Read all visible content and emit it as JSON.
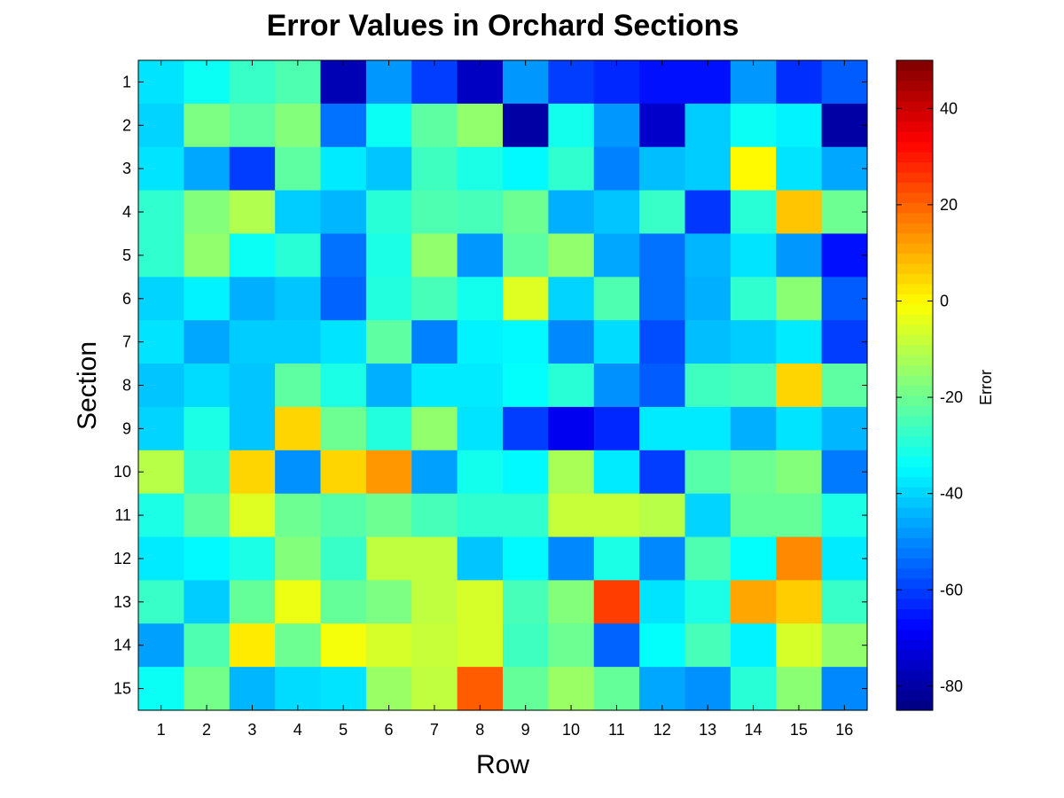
{
  "chart_data": {
    "type": "heatmap",
    "title": "Error Values in Orchard Sections",
    "xlabel": "Row",
    "ylabel": "Section",
    "colorbar_label": "Error",
    "colormap": "jet",
    "clim": [
      -85,
      50
    ],
    "colorbar_ticks": [
      40,
      20,
      0,
      -20,
      -40,
      -60,
      -80
    ],
    "x": [
      1,
      2,
      3,
      4,
      5,
      6,
      7,
      8,
      9,
      10,
      11,
      12,
      13,
      14,
      15,
      16
    ],
    "y": [
      1,
      2,
      3,
      4,
      5,
      6,
      7,
      8,
      9,
      10,
      11,
      12,
      13,
      14,
      15
    ],
    "z": [
      [
        -38,
        -33,
        -27,
        -24,
        -78,
        -48,
        -60,
        -76,
        -48,
        -60,
        -63,
        -66,
        -66,
        -48,
        -62,
        -56
      ],
      [
        -40,
        -18,
        -22,
        -17,
        -53,
        -33,
        -22,
        -15,
        -80,
        -32,
        -48,
        -75,
        -41,
        -33,
        -36,
        -80
      ],
      [
        -38,
        -46,
        -60,
        -22,
        -37,
        -42,
        -26,
        -31,
        -35,
        -28,
        -51,
        -43,
        -41,
        0,
        -38,
        -46
      ],
      [
        -28,
        -17,
        -11,
        -41,
        -44,
        -29,
        -24,
        -25,
        -20,
        -45,
        -42,
        -27,
        -61,
        -29,
        7,
        -20
      ],
      [
        -28,
        -15,
        -33,
        -29,
        -53,
        -31,
        -15,
        -48,
        -22,
        -15,
        -46,
        -53,
        -44,
        -38,
        -48,
        -66
      ],
      [
        -40,
        -36,
        -45,
        -42,
        -55,
        -30,
        -25,
        -32,
        -5,
        -40,
        -24,
        -53,
        -45,
        -28,
        -16,
        -56
      ],
      [
        -38,
        -46,
        -41,
        -41,
        -38,
        -22,
        -51,
        -36,
        -35,
        -50,
        -39,
        -58,
        -43,
        -41,
        -37,
        -60
      ],
      [
        -42,
        -39,
        -42,
        -22,
        -31,
        -45,
        -37,
        -37,
        -34,
        -29,
        -49,
        -56,
        -26,
        -25,
        5,
        -22
      ],
      [
        -40,
        -31,
        -42,
        5,
        -20,
        -30,
        -15,
        -38,
        -60,
        -70,
        -63,
        -37,
        -37,
        -45,
        -38,
        -44
      ],
      [
        -10,
        -28,
        5,
        -49,
        5,
        13,
        -47,
        -32,
        -35,
        -12,
        -37,
        -60,
        -23,
        -20,
        -17,
        -52
      ],
      [
        -31,
        -22,
        -5,
        -20,
        -23,
        -20,
        -25,
        -28,
        -28,
        -8,
        -8,
        -10,
        -40,
        -21,
        -21,
        -31
      ],
      [
        -37,
        -35,
        -31,
        -17,
        -27,
        -9,
        -9,
        -42,
        -35,
        -50,
        -31,
        -50,
        -24,
        -34,
        15,
        -37
      ],
      [
        -27,
        -41,
        -21,
        -3,
        -21,
        -18,
        -9,
        -6,
        -25,
        -17,
        25,
        -38,
        -31,
        11,
        6,
        -27
      ],
      [
        -47,
        -24,
        2,
        -20,
        -2,
        -6,
        -8,
        -6,
        -26,
        -20,
        -55,
        -34,
        -25,
        -36,
        -6,
        -15
      ],
      [
        -33,
        -19,
        -44,
        -39,
        -38,
        -14,
        -9,
        21,
        -21,
        -14,
        -21,
        -46,
        -49,
        -29,
        -16,
        -50
      ]
    ]
  }
}
